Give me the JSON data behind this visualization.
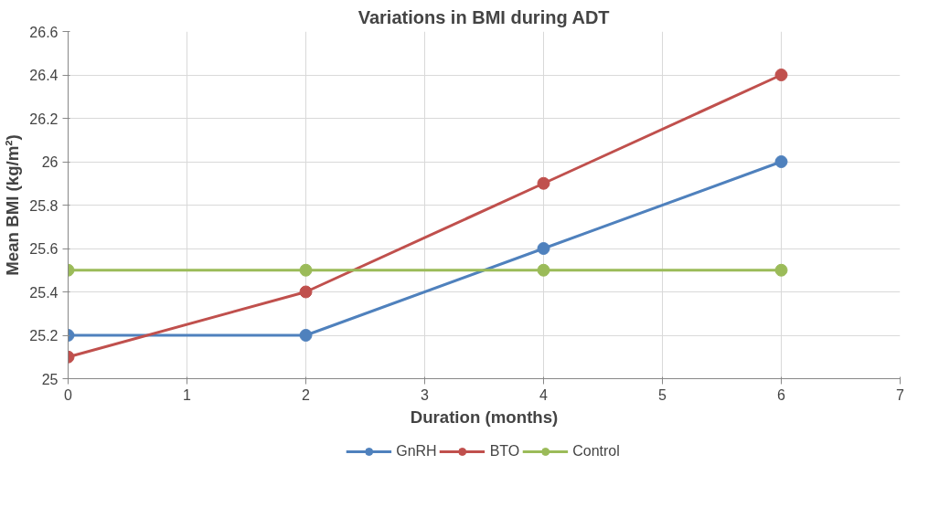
{
  "chart_data": {
    "type": "line",
    "title": "Variations in BMI during ADT",
    "xlabel": "Duration (months)",
    "ylabel": "Mean BMI (kg/m²)",
    "x": [
      0,
      2,
      4,
      6
    ],
    "series": [
      {
        "name": "GnRH",
        "color": "#4f81bd",
        "values": [
          25.2,
          25.2,
          25.6,
          26.0
        ]
      },
      {
        "name": "BTO",
        "color": "#c0504d",
        "values": [
          25.1,
          25.4,
          25.9,
          26.4
        ]
      },
      {
        "name": "Control",
        "color": "#9bbb59",
        "values": [
          25.5,
          25.5,
          25.5,
          25.5
        ]
      }
    ],
    "xlim": [
      0,
      7
    ],
    "xticks": [
      0,
      1,
      2,
      3,
      4,
      5,
      6,
      7
    ],
    "ylim": [
      25,
      26.6
    ],
    "yticks": [
      25,
      25.2,
      25.4,
      25.6,
      25.8,
      26,
      26.2,
      26.4,
      26.6
    ],
    "grid": true,
    "legend": "bottom",
    "marker": "circle",
    "line_style": "solid"
  }
}
